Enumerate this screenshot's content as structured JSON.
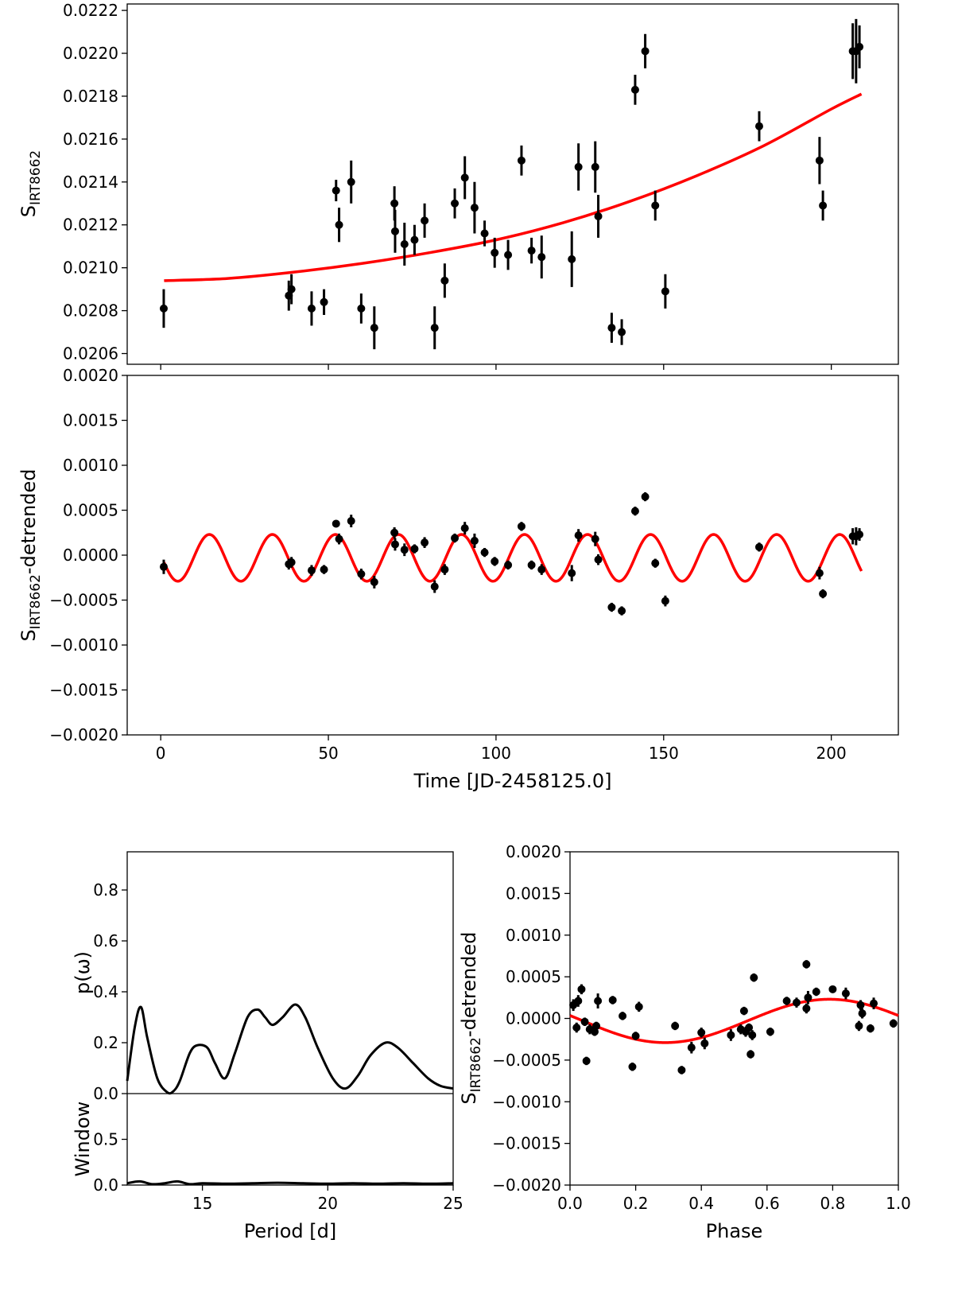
{
  "chart_data": [
    {
      "type": "scatter",
      "ylabel": "S_IRT8662",
      "ylabel_main": "S",
      "ylabel_sub": "IRT8662",
      "xlim": [
        -10,
        220
      ],
      "ylim": [
        0.02055,
        0.02223
      ],
      "yticks": [
        "0.0206",
        "0.0208",
        "0.0210",
        "0.0212",
        "0.0214",
        "0.0216",
        "0.0218",
        "0.0220",
        "0.0222"
      ],
      "ytick_values": [
        0.0206,
        0.0208,
        0.021,
        0.0212,
        0.0214,
        0.0216,
        0.0218,
        0.022,
        0.0222
      ],
      "xtick_values": [
        0,
        50,
        100,
        150,
        200
      ],
      "grid": false,
      "series": [
        {
          "kind": "errorbar",
          "color": "#000000",
          "points": [
            [
              0.9,
              0.02081,
              9e-05
            ],
            [
              38.2,
              0.02087,
              7e-05
            ],
            [
              39.0,
              0.0209,
              7e-05
            ],
            [
              45.0,
              0.02081,
              8e-05
            ],
            [
              48.7,
              0.02084,
              6e-05
            ],
            [
              52.3,
              0.02136,
              5e-05
            ],
            [
              53.2,
              0.0212,
              8e-05
            ],
            [
              56.8,
              0.0214,
              0.0001
            ],
            [
              59.8,
              0.02081,
              7e-05
            ],
            [
              63.7,
              0.02072,
              0.0001
            ],
            [
              69.7,
              0.0213,
              8e-05
            ],
            [
              69.9,
              0.02117,
              0.0001
            ],
            [
              72.7,
              0.02111,
              0.0001
            ],
            [
              75.7,
              0.02113,
              7e-05
            ],
            [
              78.7,
              0.02122,
              8e-05
            ],
            [
              81.7,
              0.02072,
              0.0001
            ],
            [
              84.7,
              0.02094,
              8e-05
            ],
            [
              87.7,
              0.0213,
              7e-05
            ],
            [
              90.7,
              0.02142,
              0.0001
            ],
            [
              93.6,
              0.02128,
              0.00012
            ],
            [
              96.6,
              0.02116,
              6e-05
            ],
            [
              99.6,
              0.02107,
              7e-05
            ],
            [
              103.6,
              0.02106,
              7e-05
            ],
            [
              107.6,
              0.0215,
              7e-05
            ],
            [
              110.6,
              0.02108,
              6e-05
            ],
            [
              113.6,
              0.02105,
              0.0001
            ],
            [
              122.6,
              0.02104,
              0.00013
            ],
            [
              124.6,
              0.02147,
              0.00011
            ],
            [
              129.6,
              0.02147,
              0.00012
            ],
            [
              130.5,
              0.02124,
              0.0001
            ],
            [
              134.5,
              0.02072,
              7e-05
            ],
            [
              137.5,
              0.0207,
              6e-05
            ],
            [
              141.5,
              0.02183,
              7e-05
            ],
            [
              144.5,
              0.02201,
              8e-05
            ],
            [
              147.5,
              0.02129,
              7e-05
            ],
            [
              150.5,
              0.02089,
              8e-05
            ],
            [
              178.5,
              0.02166,
              7e-05
            ],
            [
              196.5,
              0.0215,
              0.00011
            ],
            [
              197.5,
              0.02129,
              7e-05
            ],
            [
              206.4,
              0.02201,
              0.00013
            ],
            [
              207.4,
              0.02201,
              0.00015
            ],
            [
              208.4,
              0.02203,
              0.0001
            ]
          ]
        },
        {
          "kind": "line",
          "color": "#ff0000",
          "x": [
            1,
            20,
            40,
            60,
            80,
            100,
            120,
            140,
            160,
            180,
            200,
            209
          ],
          "y": [
            0.02094,
            0.02095,
            0.02098,
            0.02102,
            0.02107,
            0.02113,
            0.02121,
            0.02131,
            0.02143,
            0.02157,
            0.02174,
            0.02181
          ]
        }
      ]
    },
    {
      "type": "scatter",
      "ylabel": "S_IRT8662-detrended",
      "ylabel_main": "S",
      "ylabel_sub": "IRT8662",
      "ylabel_suffix": "-detrended",
      "xlabel": "Time [JD-2458125.0]",
      "xlim": [
        -10,
        220
      ],
      "ylim": [
        -0.002,
        0.002
      ],
      "xticks": [
        "0",
        "50",
        "100",
        "150",
        "200"
      ],
      "xtick_values": [
        0,
        50,
        100,
        150,
        200
      ],
      "yticks": [
        "−0.0020",
        "−0.0015",
        "−0.0010",
        "−0.0005",
        "0.0000",
        "0.0005",
        "0.0010",
        "0.0015",
        "0.0020"
      ],
      "ytick_values": [
        -0.002,
        -0.0015,
        -0.001,
        -0.0005,
        0,
        0.0005,
        0.001,
        0.0015,
        0.002
      ],
      "grid": false,
      "series": [
        {
          "kind": "errorbar",
          "color": "#000000",
          "points": [
            [
              0.9,
              -0.00013,
              8e-05
            ],
            [
              38.2,
              -0.0001,
              6e-05
            ],
            [
              39.0,
              -8e-05,
              6e-05
            ],
            [
              45.0,
              -0.00017,
              6e-05
            ],
            [
              48.7,
              -0.00016,
              5e-05
            ],
            [
              52.3,
              0.00035,
              4e-05
            ],
            [
              53.2,
              0.00018,
              6e-05
            ],
            [
              56.8,
              0.00038,
              7e-05
            ],
            [
              59.8,
              -0.00021,
              6e-05
            ],
            [
              63.7,
              -0.0003,
              7e-05
            ],
            [
              69.7,
              0.00025,
              6e-05
            ],
            [
              69.9,
              0.00012,
              7e-05
            ],
            [
              72.7,
              6e-05,
              7e-05
            ],
            [
              75.7,
              7e-05,
              5e-05
            ],
            [
              78.7,
              0.00014,
              6e-05
            ],
            [
              81.7,
              -0.00035,
              7e-05
            ],
            [
              84.7,
              -0.00016,
              6e-05
            ],
            [
              87.7,
              0.00019,
              5e-05
            ],
            [
              90.7,
              0.0003,
              7e-05
            ],
            [
              93.6,
              0.00016,
              8e-05
            ],
            [
              96.6,
              3e-05,
              5e-05
            ],
            [
              99.6,
              -7e-05,
              5e-05
            ],
            [
              103.6,
              -0.00011,
              5e-05
            ],
            [
              107.6,
              0.00032,
              5e-05
            ],
            [
              110.6,
              -0.00011,
              5e-05
            ],
            [
              113.6,
              -0.00016,
              6e-05
            ],
            [
              122.6,
              -0.0002,
              9e-05
            ],
            [
              124.6,
              0.00022,
              7e-05
            ],
            [
              129.6,
              0.00018,
              8e-05
            ],
            [
              130.5,
              -5e-05,
              6e-05
            ],
            [
              134.5,
              -0.00058,
              5e-05
            ],
            [
              137.5,
              -0.00062,
              5e-05
            ],
            [
              141.5,
              0.00049,
              5e-05
            ],
            [
              144.5,
              0.00065,
              5e-05
            ],
            [
              147.5,
              -9e-05,
              5e-05
            ],
            [
              150.5,
              -0.00051,
              6e-05
            ],
            [
              178.5,
              9e-05,
              5e-05
            ],
            [
              196.5,
              -0.0002,
              7e-05
            ],
            [
              197.5,
              -0.00043,
              5e-05
            ],
            [
              206.4,
              0.00021,
              9e-05
            ],
            [
              207.4,
              0.00021,
              0.0001
            ],
            [
              208.4,
              0.00023,
              7e-05
            ]
          ]
        },
        {
          "kind": "sine",
          "color": "#ff0000",
          "x_range": [
            1,
            209
          ],
          "amplitude": 0.00026,
          "offset": -3e-05,
          "period": 18.8,
          "peak_x": 14.5
        }
      ]
    },
    {
      "type": "line",
      "ylabel": "p(ω)",
      "ylabel_lower": "Window",
      "xlabel": "Period [d]",
      "xlim": [
        12,
        25
      ],
      "ylim": [
        0,
        0.95
      ],
      "ylim_lower": [
        0,
        1.0
      ],
      "xticks": [
        "15",
        "20",
        "25"
      ],
      "xtick_values": [
        15,
        20,
        25
      ],
      "yticks": [
        "0.0",
        "0.2",
        "0.4",
        "0.6",
        "0.8"
      ],
      "ytick_values": [
        0,
        0.2,
        0.4,
        0.6,
        0.8
      ],
      "yticks_lower": [
        "0.0",
        "0.5"
      ],
      "ytick_values_lower": [
        0,
        0.5
      ],
      "series": [
        {
          "name": "",
          "kind": "line",
          "color": "#000000",
          "x": [
            12.0,
            12.3,
            12.55,
            12.8,
            13.2,
            13.6,
            13.85,
            14.1,
            14.5,
            14.8,
            15.2,
            15.5,
            15.9,
            16.3,
            16.8,
            17.2,
            17.5,
            17.8,
            18.2,
            18.7,
            19.1,
            19.6,
            20.2,
            20.7,
            21.2,
            21.7,
            22.3,
            22.8,
            23.4,
            24.0,
            24.5,
            25.0
          ],
          "y": [
            0.05,
            0.26,
            0.34,
            0.22,
            0.06,
            0.005,
            0.01,
            0.05,
            0.16,
            0.19,
            0.18,
            0.12,
            0.06,
            0.16,
            0.3,
            0.33,
            0.3,
            0.27,
            0.3,
            0.35,
            0.3,
            0.18,
            0.06,
            0.02,
            0.07,
            0.15,
            0.2,
            0.18,
            0.12,
            0.06,
            0.03,
            0.02
          ]
        },
        {
          "name": "",
          "kind": "line",
          "color": "#000000",
          "panel": "lower",
          "x": [
            12.0,
            12.5,
            13.0,
            13.5,
            14.0,
            14.5,
            15.0,
            16.0,
            17.0,
            18.0,
            19.0,
            20.0,
            21.0,
            22.0,
            23.0,
            24.0,
            25.0
          ],
          "y": [
            0.02,
            0.04,
            0.01,
            0.02,
            0.04,
            0.01,
            0.02,
            0.015,
            0.02,
            0.025,
            0.02,
            0.015,
            0.02,
            0.015,
            0.02,
            0.015,
            0.02
          ]
        }
      ]
    },
    {
      "type": "scatter",
      "ylabel": "S_IRT8662-detrended",
      "ylabel_main": "S",
      "ylabel_sub": "IRT8662",
      "ylabel_suffix": "-detrended",
      "xlabel": "Phase",
      "xlim": [
        0.0,
        1.0
      ],
      "ylim": [
        -0.002,
        0.002
      ],
      "xticks": [
        "0.0",
        "0.2",
        "0.4",
        "0.6",
        "0.8",
        "1.0"
      ],
      "xtick_values": [
        0,
        0.2,
        0.4,
        0.6,
        0.8,
        1.0
      ],
      "yticks": [
        "−0.0020",
        "−0.0015",
        "−0.0010",
        "−0.0005",
        "0.0000",
        "0.0005",
        "0.0010",
        "0.0015",
        "0.0020"
      ],
      "ytick_values": [
        -0.002,
        -0.0015,
        -0.001,
        -0.0005,
        0,
        0.0005,
        0.001,
        0.0015,
        0.002
      ],
      "series": [
        {
          "kind": "errorbar",
          "color": "#000000",
          "points": [
            [
              0.01,
              0.00016,
              7e-05
            ],
            [
              0.02,
              -0.00011,
              6e-05
            ],
            [
              0.025,
              0.00021,
              7e-05
            ],
            [
              0.035,
              0.00035,
              6e-05
            ],
            [
              0.045,
              -4e-05,
              5e-05
            ],
            [
              0.05,
              -0.00051,
              5e-05
            ],
            [
              0.06,
              -0.00013,
              6e-05
            ],
            [
              0.075,
              -0.00016,
              5e-05
            ],
            [
              0.08,
              -9e-05,
              5e-05
            ],
            [
              0.085,
              0.00021,
              9e-05
            ],
            [
              0.13,
              0.00022,
              5e-05
            ],
            [
              0.16,
              3e-05,
              5e-05
            ],
            [
              0.19,
              -0.00058,
              5e-05
            ],
            [
              0.2,
              -0.00021,
              5e-05
            ],
            [
              0.21,
              0.00014,
              6e-05
            ],
            [
              0.32,
              -9e-05,
              5e-05
            ],
            [
              0.34,
              -0.00062,
              5e-05
            ],
            [
              0.37,
              -0.00035,
              7e-05
            ],
            [
              0.4,
              -0.00017,
              6e-05
            ],
            [
              0.41,
              -0.0003,
              7e-05
            ],
            [
              0.49,
              -0.0002,
              7e-05
            ],
            [
              0.52,
              -0.00013,
              6e-05
            ],
            [
              0.53,
              9e-05,
              5e-05
            ],
            [
              0.535,
              -0.00016,
              6e-05
            ],
            [
              0.545,
              -0.00011,
              5e-05
            ],
            [
              0.55,
              -0.00043,
              5e-05
            ],
            [
              0.555,
              -0.0002,
              6e-05
            ],
            [
              0.56,
              0.00049,
              5e-05
            ],
            [
              0.61,
              -0.00016,
              5e-05
            ],
            [
              0.66,
              0.00021,
              5e-05
            ],
            [
              0.69,
              0.00019,
              6e-05
            ],
            [
              0.72,
              0.00012,
              6e-05
            ],
            [
              0.72,
              0.00065,
              5e-05
            ],
            [
              0.725,
              0.00025,
              8e-05
            ],
            [
              0.75,
              0.00032,
              5e-05
            ],
            [
              0.8,
              0.00035,
              4e-05
            ],
            [
              0.84,
              0.0003,
              7e-05
            ],
            [
              0.88,
              -9e-05,
              6e-05
            ],
            [
              0.885,
              0.00016,
              6e-05
            ],
            [
              0.89,
              6e-05,
              6e-05
            ],
            [
              0.915,
              -0.00012,
              5e-05
            ],
            [
              0.925,
              0.00018,
              7e-05
            ],
            [
              0.985,
              -6e-05,
              5e-05
            ]
          ]
        },
        {
          "kind": "sine",
          "color": "#ff0000",
          "x_range": [
            0,
            1
          ],
          "amplitude": 0.00026,
          "offset": -3e-05,
          "period": 1.0,
          "peak_x": 0.79
        }
      ]
    }
  ]
}
